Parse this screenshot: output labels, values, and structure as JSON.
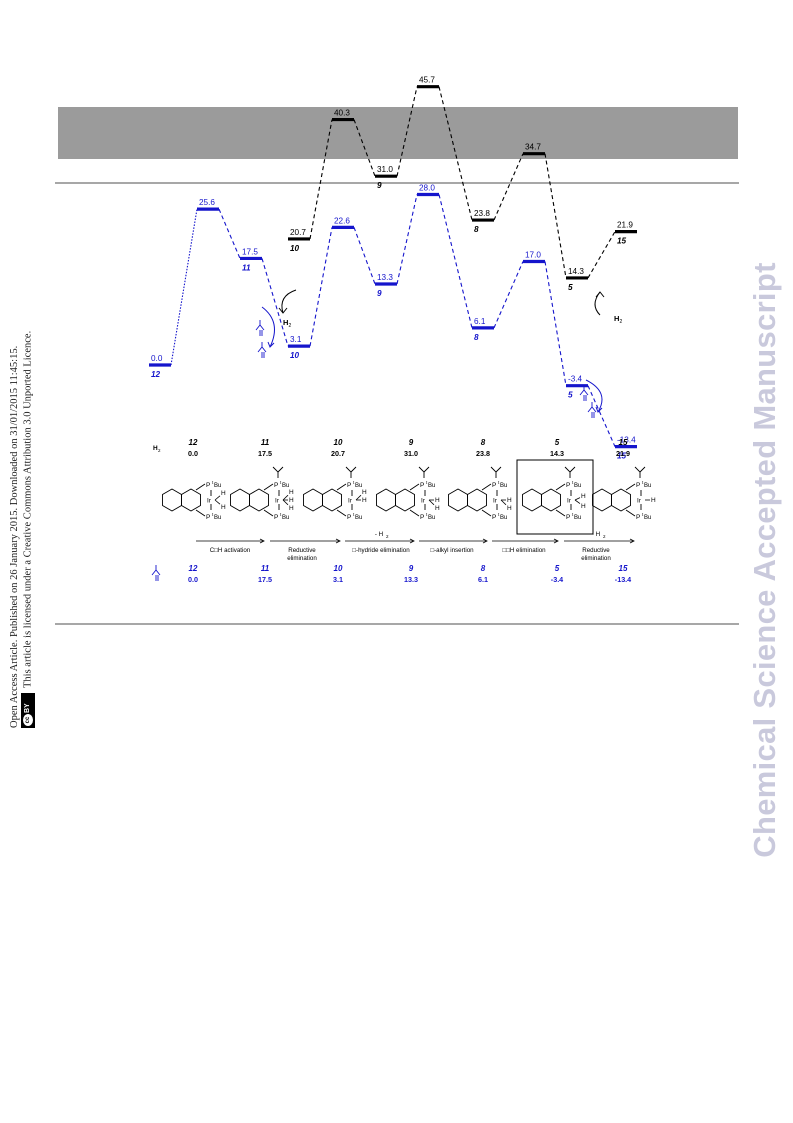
{
  "watermark": "Chemical Science Accepted Manuscript",
  "open_access": {
    "line1": "Open Access Article. Published on 26 January 2015. Downloaded on 31/01/2015 11:45:15.",
    "line2": "This article is licensed under a Creative Commons Attribution 3.0 Unported Licence.",
    "badge": "BY",
    "badge_cc": "cc"
  },
  "colors": {
    "black_path": "#000000",
    "blue_path": "#1515cc",
    "header": "#9b9b9b",
    "rule": "#a7a7a7",
    "watermark": "#c9c9dc"
  },
  "energy_profile": {
    "black": [
      {
        "energy": "20.7",
        "label": "10"
      },
      {
        "energy": "40.3",
        "label": ""
      },
      {
        "energy": "31.0",
        "label": "9"
      },
      {
        "energy": "45.7",
        "label": ""
      },
      {
        "energy": "23.8",
        "label": "8"
      },
      {
        "energy": "34.7",
        "label": ""
      },
      {
        "energy": "14.3",
        "label": "5"
      },
      {
        "energy": "21.9",
        "label": "15"
      }
    ],
    "blue": [
      {
        "energy": "0.0",
        "label": "12"
      },
      {
        "energy": "25.6",
        "label": ""
      },
      {
        "energy": "17.5",
        "label": "11"
      },
      {
        "energy": "3.1",
        "label": "10"
      },
      {
        "energy": "22.6",
        "label": ""
      },
      {
        "energy": "13.3",
        "label": "9"
      },
      {
        "energy": "28.0",
        "label": ""
      },
      {
        "energy": "6.1",
        "label": "8"
      },
      {
        "energy": "17.0",
        "label": ""
      },
      {
        "energy": "-3.4",
        "label": "5"
      },
      {
        "energy": "-13.4",
        "label": "15"
      }
    ],
    "h2_label_1": "H",
    "h2_label_2": "H"
  },
  "scheme": {
    "h2_row_label": "H",
    "black_row": [
      {
        "label": "12",
        "energy": "0.0"
      },
      {
        "label": "11",
        "energy": "17.5"
      },
      {
        "label": "10",
        "energy": "20.7"
      },
      {
        "label": "9",
        "energy": "31.0"
      },
      {
        "label": "8",
        "energy": "23.8"
      },
      {
        "label": "5",
        "energy": "14.3"
      },
      {
        "label": "15",
        "energy": "21.9"
      }
    ],
    "blue_row": [
      {
        "label": "12",
        "energy": "0.0"
      },
      {
        "label": "11",
        "energy": "17.5"
      },
      {
        "label": "10",
        "energy": "3.1"
      },
      {
        "label": "9",
        "energy": "13.3"
      },
      {
        "label": "8",
        "energy": "6.1"
      },
      {
        "label": "5",
        "energy": "-3.4"
      },
      {
        "label": "15",
        "energy": "-13.4"
      }
    ],
    "steps": [
      "C□H activation",
      "Reductive",
      "elimination",
      "□-hydride elimination",
      "- H",
      "□-alkyl insertion",
      "□□H elimination",
      "- H",
      "Reductive",
      "elimination"
    ],
    "atoms": {
      "ir": "Ir",
      "h": "H",
      "p": "P",
      "bu": "Bu",
      "bu2": "Bu",
      "t": "t"
    }
  }
}
